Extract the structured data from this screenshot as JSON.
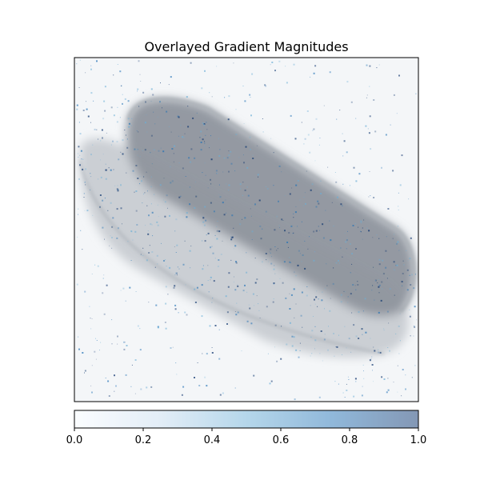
{
  "chart_data": {
    "type": "heatmap",
    "title": "Overlayed Gradient Magnitudes",
    "xlabel": "",
    "ylabel": "",
    "axes_ticks": "none",
    "colorbar": {
      "orientation": "horizontal",
      "placement": "bottom",
      "range": [
        0.0,
        1.0
      ],
      "ticks": [
        0.0,
        0.2,
        0.4,
        0.6,
        0.8,
        1.0
      ],
      "tick_labels": [
        "0.0",
        "0.2",
        "0.4",
        "0.6",
        "0.8",
        "1.0"
      ],
      "colormap": "Blues",
      "colors": [
        "#f7fbff",
        "#c6dbef",
        "#6baed6",
        "#2171b5",
        "#08306b"
      ],
      "alpha": 0.5
    },
    "background_image": {
      "subject": "two elongated grey shapes on a light background",
      "colors": [
        "#f4f6f8",
        "#c3c8ce",
        "#8e959d"
      ]
    }
  }
}
